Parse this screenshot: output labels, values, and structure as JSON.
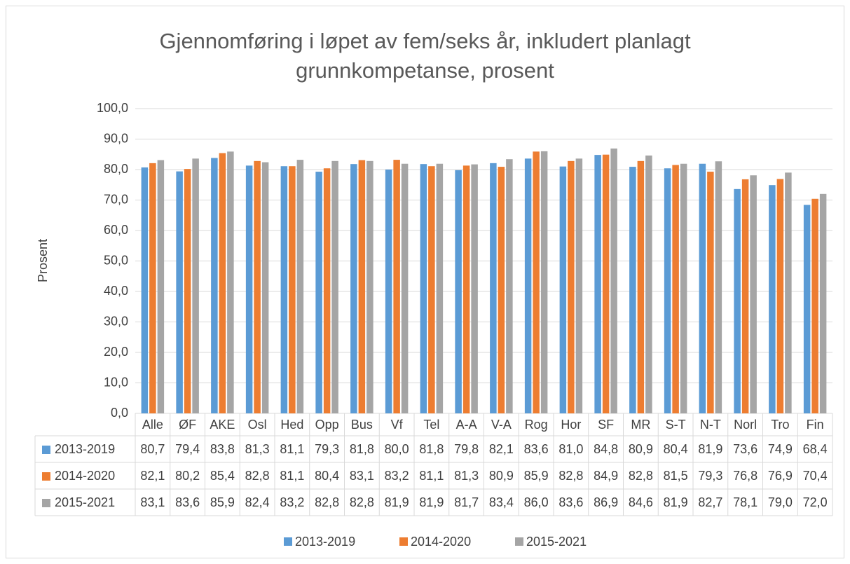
{
  "chart_data": {
    "type": "bar",
    "title": "Gjennomføring i løpet av fem/seks år, inkludert planlagt grunnkompetanse, prosent",
    "y_label": "Prosent",
    "categories": [
      "Alle",
      "ØF",
      "AKE",
      "Osl",
      "Hed",
      "Opp",
      "Bus",
      "Vf",
      "Tel",
      "A-A",
      "V-A",
      "Rog",
      "Hor",
      "SF",
      "MR",
      "S-T",
      "N-T",
      "Norl",
      "Tro",
      "Fin"
    ],
    "series": [
      {
        "name": "2013-2019",
        "color": "#5b9bd5",
        "values": [
          80.7,
          79.4,
          83.8,
          81.3,
          81.1,
          79.3,
          81.8,
          80.0,
          81.8,
          79.8,
          82.1,
          83.6,
          81.0,
          84.8,
          80.9,
          80.4,
          81.9,
          73.6,
          74.9,
          68.4
        ],
        "value_labels": [
          "80,7",
          "79,4",
          "83,8",
          "81,3",
          "81,1",
          "79,3",
          "81,8",
          "80,0",
          "81,8",
          "79,8",
          "82,1",
          "83,6",
          "81,0",
          "84,8",
          "80,9",
          "80,4",
          "81,9",
          "73,6",
          "74,9",
          "68,4"
        ]
      },
      {
        "name": "2014-2020",
        "color": "#ed7d31",
        "values": [
          82.1,
          80.2,
          85.4,
          82.8,
          81.1,
          80.4,
          83.1,
          83.2,
          81.1,
          81.3,
          80.9,
          85.9,
          82.8,
          84.9,
          82.8,
          81.5,
          79.3,
          76.8,
          76.9,
          70.4
        ],
        "value_labels": [
          "82,1",
          "80,2",
          "85,4",
          "82,8",
          "81,1",
          "80,4",
          "83,1",
          "83,2",
          "81,1",
          "81,3",
          "80,9",
          "85,9",
          "82,8",
          "84,9",
          "82,8",
          "81,5",
          "79,3",
          "76,8",
          "76,9",
          "70,4"
        ]
      },
      {
        "name": "2015-2021",
        "color": "#a5a5a5",
        "values": [
          83.1,
          83.6,
          85.9,
          82.4,
          83.2,
          82.8,
          82.8,
          81.9,
          81.9,
          81.7,
          83.4,
          86.0,
          83.6,
          86.9,
          84.6,
          81.9,
          82.7,
          78.1,
          79.0,
          72.0
        ],
        "value_labels": [
          "83,1",
          "83,6",
          "85,9",
          "82,4",
          "83,2",
          "82,8",
          "82,8",
          "81,9",
          "81,9",
          "81,7",
          "83,4",
          "86,0",
          "83,6",
          "86,9",
          "84,6",
          "81,9",
          "82,7",
          "78,1",
          "79,0",
          "72,0"
        ]
      }
    ],
    "ylim": [
      0,
      100
    ],
    "yticks": [
      {
        "value": 0,
        "label": "0,0"
      },
      {
        "value": 10,
        "label": "10,0"
      },
      {
        "value": 20,
        "label": "20,0"
      },
      {
        "value": 30,
        "label": "30,0"
      },
      {
        "value": 40,
        "label": "40,0"
      },
      {
        "value": 50,
        "label": "50,0"
      },
      {
        "value": 60,
        "label": "60,0"
      },
      {
        "value": 70,
        "label": "70,0"
      },
      {
        "value": 80,
        "label": "80,0"
      },
      {
        "value": 90,
        "label": "90,0"
      },
      {
        "value": 100,
        "label": "100,0"
      }
    ],
    "grid": true,
    "legend": "bottom",
    "data_table": true
  }
}
